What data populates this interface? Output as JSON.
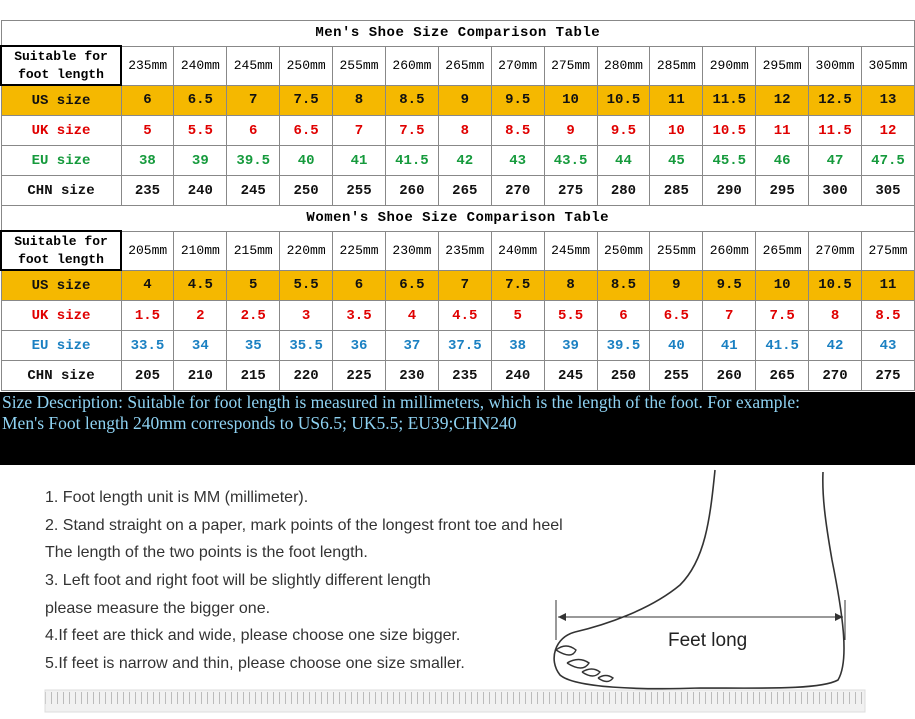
{
  "men": {
    "title": "Men's Shoe Size Comparison Table",
    "header": {
      "label": "Suitable for foot length",
      "values": [
        "235mm",
        "240mm",
        "245mm",
        "250mm",
        "255mm",
        "260mm",
        "265mm",
        "270mm",
        "275mm",
        "280mm",
        "285mm",
        "290mm",
        "295mm",
        "300mm",
        "305mm"
      ]
    },
    "rows": [
      {
        "label": "US size",
        "values": [
          6,
          6.5,
          7,
          7.5,
          8,
          8.5,
          9,
          9.5,
          10,
          10.5,
          11,
          11.5,
          12,
          12.5,
          13
        ]
      },
      {
        "label": "UK size",
        "values": [
          5,
          5.5,
          6,
          6.5,
          7,
          7.5,
          8,
          8.5,
          9,
          9.5,
          10,
          10.5,
          11,
          11.5,
          12
        ]
      },
      {
        "label": "EU size",
        "values": [
          38,
          39,
          39.5,
          40,
          41,
          41.5,
          42,
          43,
          43.5,
          44,
          45,
          45.5,
          46,
          47,
          47.5
        ]
      },
      {
        "label": "CHN size",
        "values": [
          235,
          240,
          245,
          250,
          255,
          260,
          265,
          270,
          275,
          280,
          285,
          290,
          295,
          300,
          305
        ]
      }
    ]
  },
  "women": {
    "title": "Women's Shoe Size Comparison Table",
    "header": {
      "label": "Suitable for foot length",
      "values": [
        "205mm",
        "210mm",
        "215mm",
        "220mm",
        "225mm",
        "230mm",
        "235mm",
        "240mm",
        "245mm",
        "250mm",
        "255mm",
        "260mm",
        "265mm",
        "270mm",
        "275mm"
      ]
    },
    "rows": [
      {
        "label": "US size",
        "values": [
          4,
          4.5,
          5,
          5.5,
          6,
          6.5,
          7,
          7.5,
          8,
          8.5,
          9,
          9.5,
          10,
          10.5,
          11
        ]
      },
      {
        "label": "UK size",
        "values": [
          1.5,
          2,
          2.5,
          3,
          3.5,
          4,
          4.5,
          5,
          5.5,
          6,
          6.5,
          7,
          7.5,
          8,
          8.5
        ]
      },
      {
        "label": "EU size",
        "values": [
          33.5,
          34,
          35,
          35.5,
          36,
          37,
          37.5,
          38,
          39,
          39.5,
          40,
          41,
          41.5,
          42,
          43
        ]
      },
      {
        "label": "CHN size",
        "values": [
          205,
          210,
          215,
          220,
          225,
          230,
          235,
          240,
          245,
          250,
          255,
          260,
          265,
          270,
          275
        ]
      }
    ]
  },
  "description": [
    "Size Description: Suitable for foot length is measured in millimeters, which is the length of the foot. For example:",
    "Men's Foot length 240mm corresponds to US6.5; UK5.5; EU39;CHN240"
  ],
  "steps": [
    "1. Foot length unit is MM (millimeter).",
    "2. Stand straight on a paper, mark points of the longest front toe and heel",
    "The length of the two points is the foot length.",
    "3. Left foot and right foot will be slightly different length",
    "please measure the bigger one.",
    "4.If feet are thick and wide, please choose one size bigger.",
    "5.If feet is narrow and thin, please choose one size smaller."
  ],
  "diagram_label": "Feet long"
}
